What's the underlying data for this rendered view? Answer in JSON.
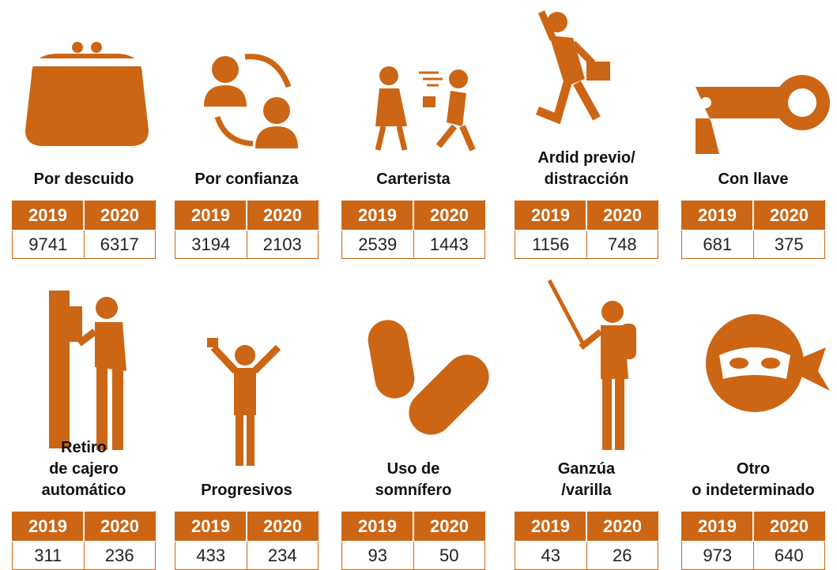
{
  "years": [
    "2019",
    "2020"
  ],
  "items": [
    {
      "label": [
        "Por descuido"
      ],
      "values": [
        9741,
        6317
      ]
    },
    {
      "label": [
        "Por confianza"
      ],
      "values": [
        3194,
        2103
      ]
    },
    {
      "label": [
        "Carterista"
      ],
      "values": [
        2539,
        1443
      ]
    },
    {
      "label": [
        "Ardid previo/",
        "distracción"
      ],
      "values": [
        1156,
        748
      ]
    },
    {
      "label": [
        "Con llave"
      ],
      "values": [
        681,
        375
      ]
    },
    {
      "label": [
        "Retiro",
        "de cajero",
        "automático"
      ],
      "values": [
        311,
        236
      ]
    },
    {
      "label": [
        "Progresivos"
      ],
      "values": [
        433,
        234
      ]
    },
    {
      "label": [
        "Uso de",
        "somnífero"
      ],
      "values": [
        93,
        50
      ]
    },
    {
      "label": [
        "Ganzúa",
        "/varilla"
      ],
      "values": [
        43,
        26
      ]
    },
    {
      "label": [
        "Otro",
        "o indeterminado"
      ],
      "values": [
        973,
        640
      ]
    }
  ]
}
